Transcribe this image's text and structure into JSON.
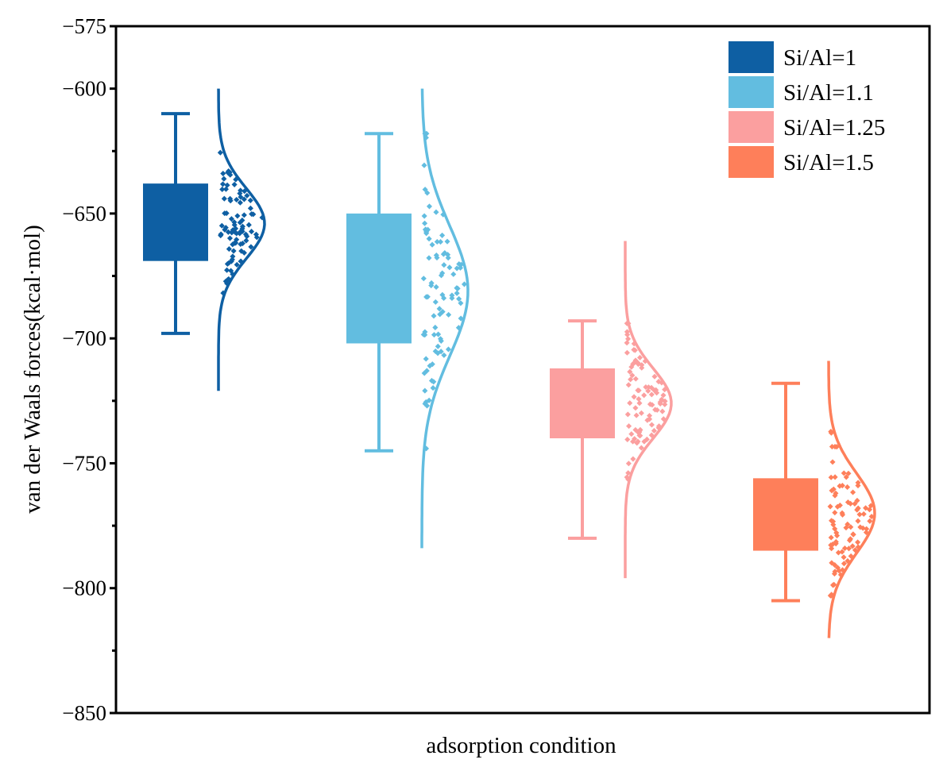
{
  "chart_data": {
    "type": "box",
    "title": "",
    "xlabel": "adsorption condition",
    "ylabel": "van der Waals forces(kcal·mol)",
    "ylim": [
      -850,
      -575
    ],
    "yticks": [
      -575,
      -600,
      -650,
      -700,
      -750,
      -800,
      -850
    ],
    "ytick_labels": [
      "−575",
      "−600",
      "−650",
      "−700",
      "−750",
      "−800",
      "−850"
    ],
    "grid": false,
    "legend": {
      "position": "top-right"
    },
    "series": [
      {
        "name": "Si/Al=1",
        "color": "#0e5fa3",
        "whisker_low": -698,
        "q1": -669,
        "q3": -638,
        "whisker_high": -610,
        "dist_mean": -654,
        "dist_sd": 14,
        "dist_min": -721,
        "dist_max": -600,
        "points_range": [
          -697,
          -610
        ]
      },
      {
        "name": "Si/Al=1.1",
        "color": "#62bde0",
        "whisker_low": -745,
        "q1": -702,
        "q3": -650,
        "whisker_high": -618,
        "dist_mean": -681,
        "dist_sd": 26,
        "dist_min": -784,
        "dist_max": -600,
        "points_range": [
          -745,
          -618
        ]
      },
      {
        "name": "Si/Al=1.25",
        "color": "#fb9f9f",
        "whisker_low": -780,
        "q1": -740,
        "q3": -712,
        "whisker_high": -693,
        "dist_mean": -726,
        "dist_sd": 14,
        "dist_min": -796,
        "dist_max": -661,
        "points_range": [
          -788,
          -694
        ]
      },
      {
        "name": "Si/Al=1.5",
        "color": "#fe7f5a",
        "whisker_low": -805,
        "q1": -785,
        "q3": -756,
        "whisker_high": -718,
        "dist_mean": -770,
        "dist_sd": 16,
        "dist_min": -820,
        "dist_max": -709,
        "points_range": [
          -803,
          -718
        ]
      }
    ]
  }
}
